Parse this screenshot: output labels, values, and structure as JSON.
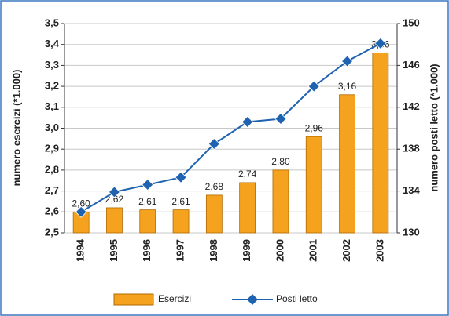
{
  "chart_data": {
    "type": "bar-line",
    "y_label": "numero esercizi (*1.000)",
    "y2_label": "numero posti letto (*1.000)",
    "categories": [
      "1994",
      "1995",
      "1996",
      "1997",
      "1998",
      "1999",
      "2000",
      "2001",
      "2002",
      "2003"
    ],
    "series": [
      {
        "name": "Esercizi",
        "type": "bar",
        "color": "#f5a21e",
        "values": [
          2.6,
          2.62,
          2.61,
          2.61,
          2.68,
          2.74,
          2.8,
          2.96,
          3.16,
          3.36
        ],
        "value_labels": [
          "2,60",
          "2,62",
          "2,61",
          "2,61",
          "2,68",
          "2,74",
          "2,80",
          "2,96",
          "3,16",
          "3,36"
        ]
      },
      {
        "name": "Posti letto",
        "type": "line",
        "axis": "y2",
        "color": "#1f63b0",
        "values": [
          132.0,
          133.9,
          134.6,
          135.3,
          138.5,
          140.6,
          140.9,
          144.0,
          146.4,
          148.1
        ]
      }
    ],
    "ylim": [
      2.5,
      3.5
    ],
    "yticks": [
      {
        "value": 2.5,
        "label": "2,5"
      },
      {
        "value": 2.6,
        "label": "2,6"
      },
      {
        "value": 2.7,
        "label": "2,7"
      },
      {
        "value": 2.8,
        "label": "2,8"
      },
      {
        "value": 2.9,
        "label": "2,9"
      },
      {
        "value": 3.0,
        "label": "3,0"
      },
      {
        "value": 3.1,
        "label": "3,1"
      },
      {
        "value": 3.2,
        "label": "3,2"
      },
      {
        "value": 3.3,
        "label": "3,3"
      },
      {
        "value": 3.4,
        "label": "3,4"
      },
      {
        "value": 3.5,
        "label": "3,5"
      }
    ],
    "y2lim": [
      130,
      150
    ],
    "y2ticks": [
      130,
      134,
      138,
      142,
      146,
      150
    ],
    "grid": true
  }
}
